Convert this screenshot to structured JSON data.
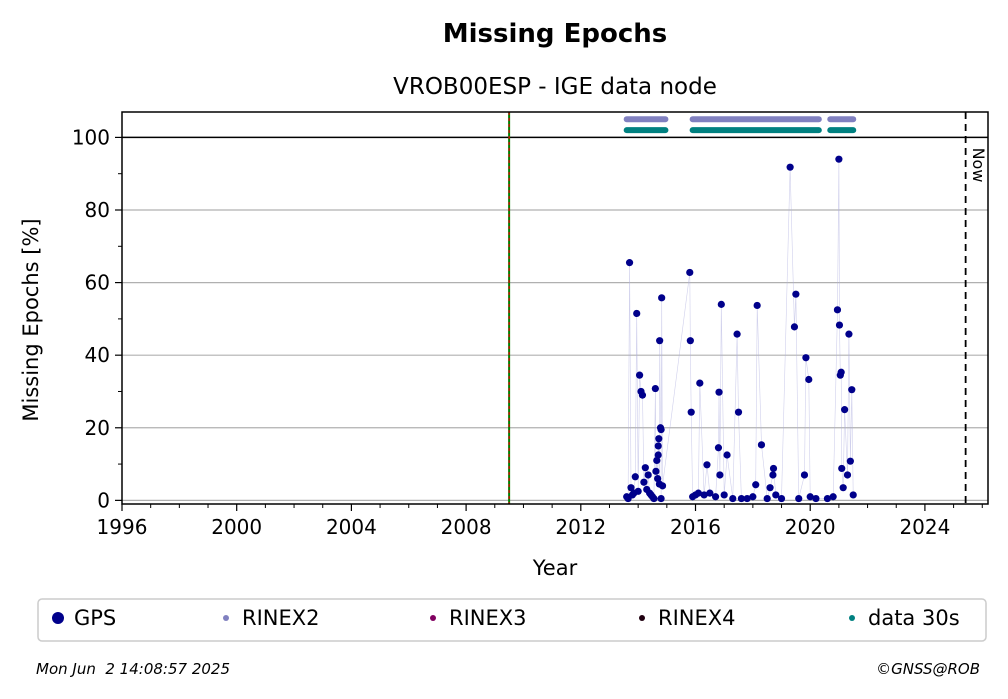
{
  "chart_data": {
    "type": "scatter",
    "title": "Missing Epochs",
    "subtitle": "VROB00ESP - IGE data node",
    "xlabel": "Year",
    "ylabel": "Missing Epochs [%]",
    "xlim": [
      1996,
      2026.2
    ],
    "ylim": [
      -1,
      107
    ],
    "xticks": [
      1996,
      2000,
      2004,
      2008,
      2012,
      2016,
      2020,
      2024
    ],
    "yticks": [
      0,
      20,
      40,
      60,
      80,
      100
    ],
    "grid": "horizontal",
    "vlines": {
      "green_red_dashed": 2009.5,
      "now": 2025.42
    },
    "now_label": "Now",
    "legend": {
      "position": "bottom",
      "entries": [
        {
          "label": "GPS",
          "color": "#00008b",
          "marker": "large-dot"
        },
        {
          "label": "RINEX2",
          "color": "#8080c0",
          "marker": "small-dot"
        },
        {
          "label": "RINEX3",
          "color": "#800060",
          "marker": "small-dot"
        },
        {
          "label": "RINEX4",
          "color": "#200010",
          "marker": "small-dot"
        },
        {
          "label": "data 30s",
          "color": "#008080",
          "marker": "small-dot"
        }
      ]
    },
    "series": [
      {
        "name": "GPS",
        "color": "#00008b",
        "points": [
          [
            2013.7,
            65.5
          ],
          [
            2013.75,
            3.5
          ],
          [
            2013.8,
            1.5
          ],
          [
            2013.9,
            6.5
          ],
          [
            2013.95,
            51.5
          ],
          [
            2014.0,
            2.5
          ],
          [
            2014.05,
            34.5
          ],
          [
            2014.1,
            30.0
          ],
          [
            2014.15,
            29.0
          ],
          [
            2014.2,
            5.0
          ],
          [
            2014.25,
            9.0
          ],
          [
            2014.3,
            3.0
          ],
          [
            2014.35,
            7.0
          ],
          [
            2014.4,
            2.0
          ],
          [
            2014.5,
            1.0
          ],
          [
            2014.6,
            30.8
          ],
          [
            2014.65,
            11.0
          ],
          [
            2014.7,
            15.0
          ],
          [
            2014.72,
            17.0
          ],
          [
            2014.75,
            44.0
          ],
          [
            2014.78,
            20.0
          ],
          [
            2014.8,
            19.5
          ],
          [
            2014.82,
            55.8
          ],
          [
            2014.85,
            4.0
          ],
          [
            2013.6,
            1.0
          ],
          [
            2013.65,
            0.5
          ],
          [
            2013.85,
            2.0
          ],
          [
            2014.45,
            1.5
          ],
          [
            2014.55,
            0.5
          ],
          [
            2014.62,
            8.0
          ],
          [
            2014.68,
            6.0
          ],
          [
            2014.7,
            12.5
          ],
          [
            2014.74,
            4.5
          ],
          [
            2014.8,
            0.5
          ],
          [
            2015.8,
            62.8
          ],
          [
            2015.82,
            44.0
          ],
          [
            2015.85,
            24.3
          ],
          [
            2015.9,
            1.0
          ],
          [
            2016.0,
            1.5
          ],
          [
            2016.1,
            2.0
          ],
          [
            2016.15,
            32.3
          ],
          [
            2016.3,
            1.5
          ],
          [
            2016.4,
            9.8
          ],
          [
            2016.5,
            2.0
          ],
          [
            2016.7,
            1.0
          ],
          [
            2016.8,
            14.5
          ],
          [
            2016.82,
            29.8
          ],
          [
            2016.85,
            7.0
          ],
          [
            2016.9,
            54.0
          ],
          [
            2017.0,
            1.5
          ],
          [
            2017.1,
            12.5
          ],
          [
            2017.3,
            0.5
          ],
          [
            2017.45,
            45.8
          ],
          [
            2017.5,
            24.3
          ],
          [
            2017.6,
            0.5
          ],
          [
            2017.8,
            0.5
          ],
          [
            2018.0,
            1.0
          ],
          [
            2018.1,
            4.3
          ],
          [
            2018.15,
            53.7
          ],
          [
            2018.3,
            15.3
          ],
          [
            2018.5,
            0.5
          ],
          [
            2018.6,
            3.5
          ],
          [
            2018.7,
            7.0
          ],
          [
            2018.72,
            8.8
          ],
          [
            2018.8,
            1.5
          ],
          [
            2019.0,
            0.5
          ],
          [
            2019.3,
            91.8
          ],
          [
            2019.45,
            47.8
          ],
          [
            2019.5,
            56.8
          ],
          [
            2019.6,
            0.5
          ],
          [
            2019.8,
            7.0
          ],
          [
            2019.85,
            39.3
          ],
          [
            2019.95,
            33.3
          ],
          [
            2020.0,
            1.0
          ],
          [
            2020.2,
            0.5
          ],
          [
            2020.6,
            0.5
          ],
          [
            2020.8,
            1.0
          ],
          [
            2020.95,
            52.5
          ],
          [
            2021.0,
            94.0
          ],
          [
            2021.02,
            48.3
          ],
          [
            2021.05,
            34.5
          ],
          [
            2021.08,
            35.3
          ],
          [
            2021.1,
            8.8
          ],
          [
            2021.15,
            3.5
          ],
          [
            2021.2,
            25.0
          ],
          [
            2021.3,
            7.0
          ],
          [
            2021.35,
            45.8
          ],
          [
            2021.4,
            10.8
          ],
          [
            2021.45,
            30.5
          ],
          [
            2021.5,
            1.5
          ]
        ]
      },
      {
        "name": "RINEX2",
        "color": "#8080c0",
        "y": 105,
        "segments": [
          [
            2013.6,
            2014.95
          ],
          [
            2015.9,
            2020.3
          ],
          [
            2020.7,
            2021.5
          ]
        ]
      },
      {
        "name": "data 30s",
        "color": "#008080",
        "y": 102,
        "segments": [
          [
            2013.6,
            2014.95
          ],
          [
            2015.9,
            2020.3
          ],
          [
            2020.7,
            2021.5
          ]
        ]
      }
    ]
  },
  "footer": {
    "timestamp": "Mon Jun  2 14:08:57 2025",
    "copyright": "©GNSS@ROB"
  }
}
